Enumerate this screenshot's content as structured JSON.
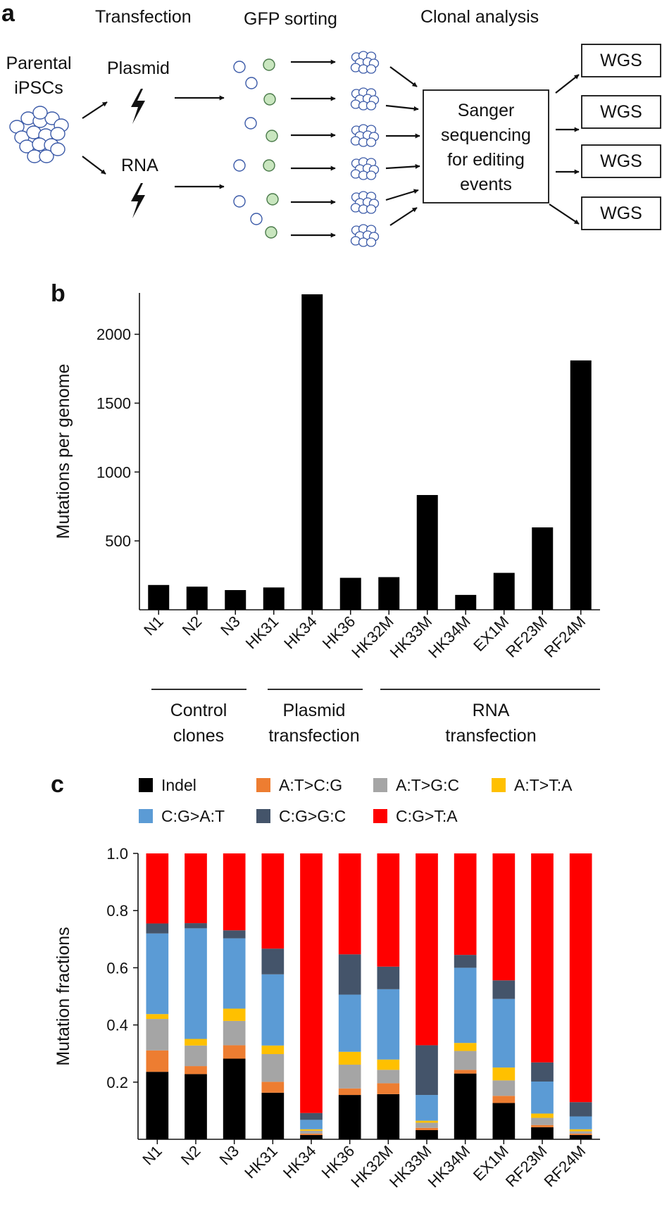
{
  "panel_a": {
    "letter": "a",
    "header_transfection": "Transfection",
    "header_gfp_sorting": "GFP sorting",
    "header_clonal_analysis": "Clonal analysis",
    "parental_line1": "Parental",
    "parental_line2": "iPSCs",
    "plasmid": "Plasmid",
    "rna": "RNA",
    "sanger_line1": "Sanger",
    "sanger_line2": "sequencing",
    "sanger_line3": "for editing",
    "sanger_line4": "events",
    "wgs_boxes": [
      "WGS",
      "WGS",
      "WGS",
      "WGS"
    ],
    "colors": {
      "gfp_fill": "#c9e6bf",
      "gfp_stroke": "#4a7a4a",
      "cell_stroke": "#3b5aa8"
    }
  },
  "panel_b": {
    "letter": "b",
    "groups": {
      "control_line1": "Control",
      "control_line2": "clones",
      "plasmid_line1": "Plasmid",
      "plasmid_line2": "transfection",
      "rna_line1": "RNA",
      "rna_line2": "transfection"
    }
  },
  "panel_c": {
    "letter": "c",
    "legend": [
      {
        "label": "Indel",
        "color": "#000000"
      },
      {
        "label": "A:T>C:G",
        "color": "#ed7d31"
      },
      {
        "label": "A:T>G:C",
        "color": "#a5a5a5"
      },
      {
        "label": "A:T>T:A",
        "color": "#ffc000"
      },
      {
        "label": "C:G>A:T",
        "color": "#5b9bd5"
      },
      {
        "label": "C:G>G:C",
        "color": "#44546a"
      },
      {
        "label": "C:G>T:A",
        "color": "#ff0000"
      }
    ]
  },
  "chart_data": [
    {
      "type": "bar",
      "title": "",
      "xlabel": "",
      "ylabel": "Mutations per genome",
      "categories": [
        "N1",
        "N2",
        "N3",
        "HK31",
        "HK34",
        "HK36",
        "HK32M",
        "HK33M",
        "HK34M",
        "EX1M",
        "RF23M",
        "RF24M"
      ],
      "values": [
        180,
        168,
        143,
        162,
        2290,
        232,
        237,
        833,
        108,
        268,
        598,
        1810
      ],
      "ylim": [
        0,
        2300
      ],
      "yticks": [
        500,
        1000,
        1500,
        2000
      ],
      "color": "#000000"
    },
    {
      "type": "bar",
      "stacked": true,
      "title": "",
      "xlabel": "",
      "ylabel": "Mutation fractions",
      "categories": [
        "N1",
        "N2",
        "N3",
        "HK31",
        "HK34",
        "HK36",
        "HK32M",
        "HK33M",
        "HK34M",
        "EX1M",
        "RF23M",
        "RF24M"
      ],
      "ylim": [
        0,
        1.0
      ],
      "yticks": [
        "0.2",
        "0.4",
        "0.6",
        "0.8",
        "1.0"
      ],
      "series": [
        {
          "name": "Indel",
          "values": [
            0.236,
            0.228,
            0.282,
            0.163,
            0.015,
            0.155,
            0.158,
            0.032,
            0.23,
            0.127,
            0.042,
            0.015
          ]
        },
        {
          "name": "A:T>C:G",
          "values": [
            0.075,
            0.028,
            0.047,
            0.038,
            0.005,
            0.023,
            0.038,
            0.008,
            0.013,
            0.025,
            0.008,
            0.005
          ]
        },
        {
          "name": "A:T>G:C",
          "values": [
            0.11,
            0.072,
            0.085,
            0.097,
            0.01,
            0.083,
            0.047,
            0.018,
            0.066,
            0.054,
            0.025,
            0.008
          ]
        },
        {
          "name": "A:T>T:A",
          "values": [
            0.017,
            0.023,
            0.043,
            0.03,
            0.005,
            0.045,
            0.036,
            0.007,
            0.028,
            0.045,
            0.015,
            0.007
          ]
        },
        {
          "name": "C:G>A:T",
          "values": [
            0.282,
            0.387,
            0.246,
            0.249,
            0.033,
            0.2,
            0.246,
            0.09,
            0.263,
            0.24,
            0.112,
            0.045
          ]
        },
        {
          "name": "C:G>G:C",
          "values": [
            0.035,
            0.018,
            0.028,
            0.09,
            0.024,
            0.141,
            0.079,
            0.174,
            0.045,
            0.065,
            0.067,
            0.05
          ]
        },
        {
          "name": "C:G>T:A",
          "values": [
            0.245,
            0.244,
            0.269,
            0.333,
            0.908,
            0.353,
            0.396,
            0.671,
            0.355,
            0.444,
            0.731,
            0.87
          ]
        }
      ]
    }
  ]
}
